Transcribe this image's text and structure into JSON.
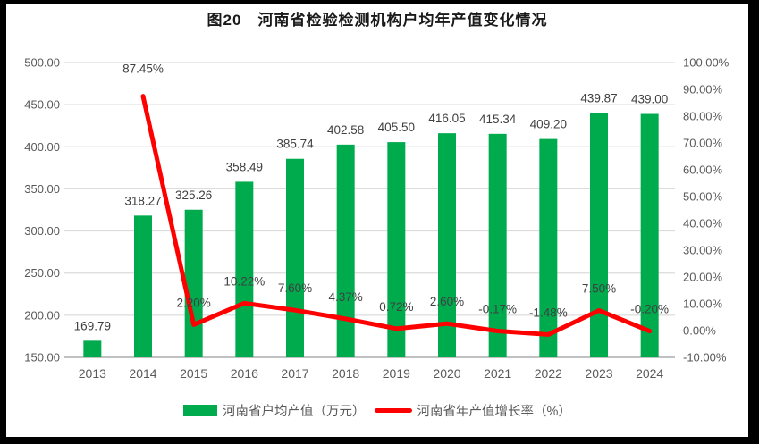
{
  "chart_data": {
    "type": "bar+line combo",
    "title": "图20　河南省检验检测机构户均年产值变化情况",
    "categories": [
      "2013",
      "2014",
      "2015",
      "2016",
      "2017",
      "2018",
      "2019",
      "2020",
      "2021",
      "2022",
      "2023",
      "2024"
    ],
    "series": [
      {
        "name": "河南省户均产值（万元）",
        "type": "bar",
        "axis": "left",
        "color": "#00AB4E",
        "values": [
          169.79,
          318.27,
          325.26,
          358.49,
          385.74,
          402.58,
          405.5,
          416.05,
          415.34,
          409.2,
          439.87,
          439.0
        ],
        "labels": [
          "169.79",
          "318.27",
          "325.26",
          "358.49",
          "385.74",
          "402.58",
          "405.50",
          "416.05",
          "415.34",
          "409.20",
          "439.87",
          "439.00"
        ]
      },
      {
        "name": "河南省年产值增长率（%）",
        "type": "line",
        "axis": "right",
        "color": "#FF0000",
        "values": [
          null,
          87.45,
          2.2,
          10.22,
          7.6,
          4.37,
          0.72,
          2.6,
          -0.17,
          -1.48,
          7.5,
          -0.2
        ],
        "labels": [
          "",
          "87.45%",
          "2.20%",
          "10.22%",
          "7.60%",
          "4.37%",
          "0.72%",
          "2.60%",
          "-0.17%",
          "-1.48%",
          "7.50%",
          "-0.20%"
        ]
      }
    ],
    "left_axis": {
      "min": 150,
      "max": 500,
      "step": 50,
      "tick_labels": [
        "500.00",
        "450.00",
        "400.00",
        "350.00",
        "300.00",
        "250.00",
        "200.00",
        "150.00"
      ]
    },
    "right_axis": {
      "min": -10,
      "max": 100,
      "step": 10,
      "tick_labels": [
        "100.00%",
        "90.00%",
        "80.00%",
        "70.00%",
        "60.00%",
        "50.00%",
        "40.00%",
        "30.00%",
        "20.00%",
        "10.00%",
        "0.00%",
        "-10.00%"
      ]
    },
    "grid": "horizontal only",
    "legend_position": "bottom-center",
    "colors": {
      "bar": "#00AB4E",
      "line": "#FF0000",
      "gridline": "#DCDCDC",
      "axis_line": "#C1C1C1",
      "axis_text": "#595959",
      "data_label_text": "#404040"
    }
  }
}
